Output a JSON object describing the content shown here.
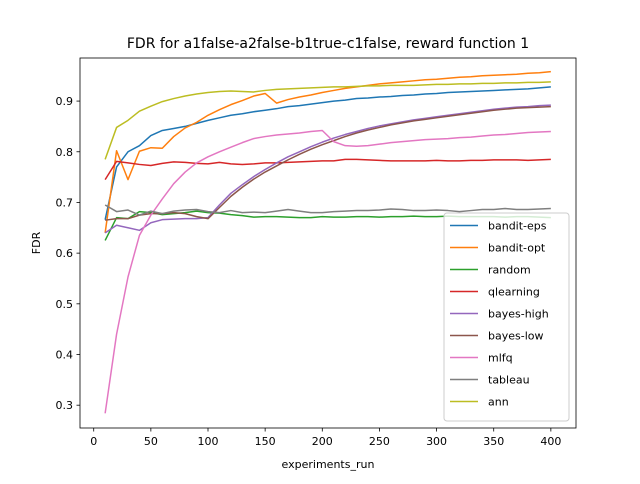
{
  "chart_data": {
    "type": "line",
    "title": "FDR for a1false-a2false-b1true-c1false, reward function 1",
    "xlabel": "experiments_run",
    "ylabel": "FDR",
    "xlim": [
      -12,
      422
    ],
    "ylim": [
      0.255,
      0.985
    ],
    "xticks": [
      0,
      50,
      100,
      150,
      200,
      250,
      300,
      350,
      400
    ],
    "yticks": [
      0.3,
      0.4,
      0.5,
      0.6,
      0.7,
      0.8,
      0.9
    ],
    "ytick_labels": [
      "0.3",
      "0.4",
      "0.5",
      "0.6",
      "0.7",
      "0.8",
      "0.9"
    ],
    "grid": false,
    "legend": "lower-right",
    "x": [
      10,
      20,
      30,
      40,
      50,
      60,
      70,
      80,
      90,
      100,
      110,
      120,
      130,
      140,
      150,
      160,
      170,
      180,
      190,
      200,
      210,
      220,
      230,
      240,
      250,
      260,
      270,
      280,
      290,
      300,
      310,
      320,
      330,
      340,
      350,
      360,
      370,
      380,
      390,
      400
    ],
    "series": [
      {
        "name": "bandit-eps",
        "color": "#1f77b4",
        "values": [
          0.666,
          0.77,
          0.8,
          0.812,
          0.832,
          0.842,
          0.846,
          0.85,
          0.856,
          0.862,
          0.867,
          0.872,
          0.875,
          0.879,
          0.882,
          0.885,
          0.889,
          0.891,
          0.894,
          0.897,
          0.9,
          0.902,
          0.905,
          0.906,
          0.908,
          0.909,
          0.911,
          0.912,
          0.914,
          0.915,
          0.917,
          0.918,
          0.919,
          0.92,
          0.921,
          0.922,
          0.923,
          0.924,
          0.926,
          0.928
        ]
      },
      {
        "name": "bandit-opt",
        "color": "#ff7f0e",
        "values": [
          0.64,
          0.802,
          0.745,
          0.801,
          0.808,
          0.807,
          0.83,
          0.847,
          0.858,
          0.872,
          0.883,
          0.893,
          0.901,
          0.91,
          0.915,
          0.896,
          0.903,
          0.908,
          0.912,
          0.917,
          0.921,
          0.925,
          0.928,
          0.931,
          0.934,
          0.936,
          0.938,
          0.94,
          0.942,
          0.943,
          0.945,
          0.947,
          0.948,
          0.95,
          0.951,
          0.952,
          0.953,
          0.955,
          0.956,
          0.958
        ]
      },
      {
        "name": "random",
        "color": "#2ca02c",
        "values": [
          0.625,
          0.67,
          0.668,
          0.682,
          0.68,
          0.676,
          0.678,
          0.68,
          0.683,
          0.68,
          0.679,
          0.676,
          0.674,
          0.671,
          0.672,
          0.672,
          0.671,
          0.67,
          0.67,
          0.672,
          0.671,
          0.671,
          0.672,
          0.672,
          0.671,
          0.672,
          0.672,
          0.673,
          0.672,
          0.672,
          0.673,
          0.672,
          0.672,
          0.672,
          0.672,
          0.671,
          0.672,
          0.672,
          0.671,
          0.67
        ]
      },
      {
        "name": "qlearning",
        "color": "#d62728",
        "values": [
          0.745,
          0.781,
          0.778,
          0.775,
          0.773,
          0.777,
          0.78,
          0.779,
          0.777,
          0.776,
          0.779,
          0.776,
          0.775,
          0.776,
          0.778,
          0.778,
          0.779,
          0.78,
          0.781,
          0.782,
          0.782,
          0.785,
          0.785,
          0.784,
          0.783,
          0.782,
          0.782,
          0.782,
          0.782,
          0.783,
          0.782,
          0.782,
          0.783,
          0.783,
          0.784,
          0.784,
          0.784,
          0.783,
          0.784,
          0.785
        ]
      },
      {
        "name": "bayes-high",
        "color": "#9467bd",
        "values": [
          0.64,
          0.655,
          0.65,
          0.645,
          0.66,
          0.666,
          0.667,
          0.668,
          0.668,
          0.67,
          0.695,
          0.718,
          0.735,
          0.751,
          0.765,
          0.778,
          0.79,
          0.8,
          0.81,
          0.819,
          0.827,
          0.834,
          0.84,
          0.846,
          0.851,
          0.855,
          0.859,
          0.863,
          0.866,
          0.869,
          0.872,
          0.875,
          0.878,
          0.881,
          0.884,
          0.886,
          0.888,
          0.889,
          0.891,
          0.892
        ]
      },
      {
        "name": "bayes-low",
        "color": "#8c564b",
        "values": [
          0.665,
          0.668,
          0.668,
          0.675,
          0.678,
          0.678,
          0.68,
          0.678,
          0.672,
          0.668,
          0.69,
          0.712,
          0.73,
          0.746,
          0.76,
          0.772,
          0.784,
          0.795,
          0.805,
          0.814,
          0.822,
          0.83,
          0.837,
          0.843,
          0.848,
          0.853,
          0.857,
          0.861,
          0.864,
          0.867,
          0.87,
          0.873,
          0.876,
          0.879,
          0.882,
          0.884,
          0.886,
          0.887,
          0.888,
          0.889
        ]
      },
      {
        "name": "mlfq",
        "color": "#e377c2",
        "values": [
          0.284,
          0.44,
          0.553,
          0.635,
          0.675,
          0.707,
          0.737,
          0.76,
          0.778,
          0.79,
          0.8,
          0.809,
          0.818,
          0.826,
          0.83,
          0.833,
          0.835,
          0.837,
          0.84,
          0.842,
          0.82,
          0.812,
          0.811,
          0.812,
          0.815,
          0.818,
          0.82,
          0.822,
          0.824,
          0.825,
          0.826,
          0.828,
          0.829,
          0.831,
          0.833,
          0.834,
          0.836,
          0.838,
          0.839,
          0.84
        ]
      },
      {
        "name": "tableau",
        "color": "#7f7f7f",
        "values": [
          0.695,
          0.682,
          0.685,
          0.675,
          0.683,
          0.678,
          0.683,
          0.685,
          0.686,
          0.682,
          0.68,
          0.684,
          0.68,
          0.681,
          0.68,
          0.683,
          0.686,
          0.683,
          0.68,
          0.68,
          0.682,
          0.683,
          0.684,
          0.684,
          0.685,
          0.687,
          0.686,
          0.684,
          0.684,
          0.685,
          0.684,
          0.682,
          0.684,
          0.686,
          0.686,
          0.688,
          0.686,
          0.686,
          0.687,
          0.688
        ]
      },
      {
        "name": "ann",
        "color": "#bcbd22",
        "values": [
          0.785,
          0.848,
          0.862,
          0.88,
          0.89,
          0.899,
          0.905,
          0.91,
          0.914,
          0.917,
          0.919,
          0.92,
          0.919,
          0.918,
          0.921,
          0.923,
          0.924,
          0.925,
          0.926,
          0.927,
          0.928,
          0.928,
          0.929,
          0.93,
          0.93,
          0.931,
          0.931,
          0.931,
          0.932,
          0.933,
          0.933,
          0.934,
          0.934,
          0.935,
          0.935,
          0.936,
          0.936,
          0.937,
          0.937,
          0.938
        ]
      }
    ]
  }
}
